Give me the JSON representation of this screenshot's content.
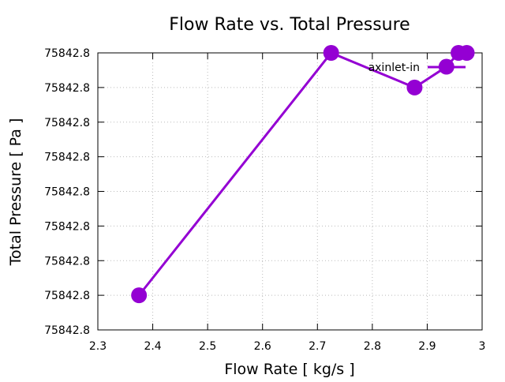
{
  "chart_data": {
    "type": "line",
    "title": "Flow Rate vs. Total Pressure",
    "xlabel": "Flow Rate [ kg/s ]",
    "ylabel": "Total Pressure [ Pa ]",
    "xlim": [
      2.3,
      3.0
    ],
    "ylim": [
      0,
      8
    ],
    "x_ticks": [
      "2.3",
      "2.4",
      "2.5",
      "2.6",
      "2.7",
      "2.8",
      "2.9",
      "3"
    ],
    "y_ticks": [
      "75842.8",
      "75842.8",
      "75842.8",
      "75842.8",
      "75842.8",
      "75842.8",
      "75842.8",
      "75842.8",
      "75842.8"
    ],
    "grid": true,
    "legend_position": "top-right",
    "series": [
      {
        "name": "axinlet-in",
        "color": "#9400d3",
        "x": [
          2.375,
          2.725,
          2.877,
          2.935,
          2.957,
          2.972
        ],
        "y": [
          1,
          8,
          7,
          7.6,
          8,
          8
        ]
      }
    ]
  }
}
